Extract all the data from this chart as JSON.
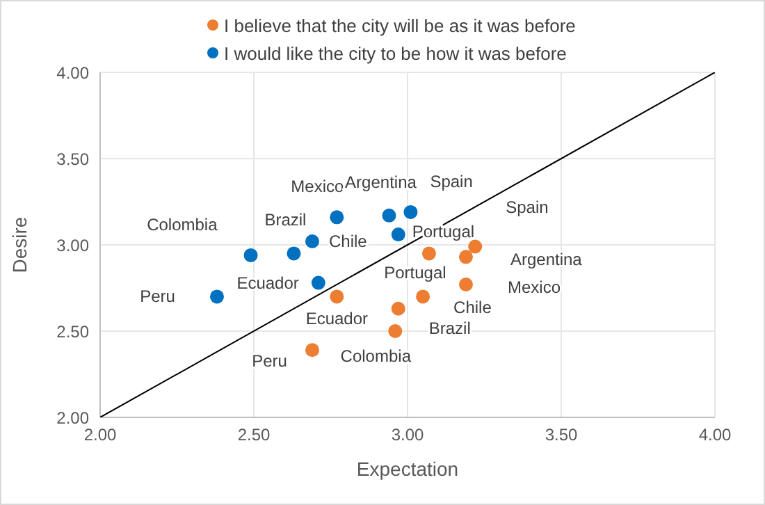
{
  "chart_data": {
    "type": "scatter",
    "xlabel": "Expectation",
    "ylabel": "Desire",
    "xlim": [
      2,
      4
    ],
    "ylim": [
      2,
      4
    ],
    "xticks": [
      {
        "value": 2,
        "label": "2.00"
      },
      {
        "value": 2.5,
        "label": "2.50"
      },
      {
        "value": 3,
        "label": "3.00"
      },
      {
        "value": 3.5,
        "label": "3.50"
      },
      {
        "value": 4,
        "label": "4.00"
      }
    ],
    "yticks": [
      {
        "value": 2,
        "label": "2.00"
      },
      {
        "value": 2.5,
        "label": "2.50"
      },
      {
        "value": 3,
        "label": "3.00"
      },
      {
        "value": 3.5,
        "label": "3.50"
      },
      {
        "value": 4,
        "label": "4.00"
      }
    ],
    "grid": true,
    "legend": "top",
    "marker": "circle",
    "series": [
      {
        "name": "I believe that the city will be as it was before",
        "color": "#ed7d31",
        "x": [
          3.22,
          3.19,
          3.07,
          3.19,
          3.05,
          2.97,
          2.96,
          2.77,
          2.69
        ],
        "values": [
          2.99,
          2.93,
          2.95,
          2.77,
          2.7,
          2.63,
          2.5,
          2.7,
          2.39
        ]
      },
      {
        "name": "I would like the city to be how it was before",
        "color": "#0070c0",
        "x": [
          2.38,
          2.49,
          2.63,
          2.69,
          2.77,
          2.94,
          3.01,
          2.97,
          2.71
        ],
        "values": [
          2.7,
          2.94,
          2.95,
          3.02,
          3.16,
          3.17,
          3.19,
          3.06,
          2.78
        ]
      },
      {
        "type": "line",
        "color": "#000000",
        "marker": "none",
        "x": [
          2,
          4
        ],
        "values": [
          2,
          4
        ]
      }
    ],
    "annotations": [
      {
        "text": "Spain",
        "x": 3.22,
        "y": 2.99
      },
      {
        "text": "Argentina",
        "x": 3.19,
        "y": 2.93
      },
      {
        "text": "Portugal",
        "x": 3.07,
        "y": 2.95
      },
      {
        "text": "Mexico",
        "x": 3.19,
        "y": 2.77
      },
      {
        "text": "Chile",
        "x": 3.05,
        "y": 2.7
      },
      {
        "text": "Brazil",
        "x": 2.97,
        "y": 2.63
      },
      {
        "text": "Colombia",
        "x": 2.96,
        "y": 2.5
      },
      {
        "text": "Ecuador",
        "x": 2.77,
        "y": 2.7
      },
      {
        "text": "Peru",
        "x": 2.69,
        "y": 2.39
      },
      {
        "text": "Peru",
        "x": 2.38,
        "y": 2.7
      },
      {
        "text": "Colombia",
        "x": 2.49,
        "y": 2.94
      },
      {
        "text": "Brazil",
        "x": 2.63,
        "y": 2.95
      },
      {
        "text": "Chile",
        "x": 2.69,
        "y": 3.02
      },
      {
        "text": "Mexico",
        "x": 2.77,
        "y": 3.16
      },
      {
        "text": "Argentina",
        "x": 2.94,
        "y": 3.17
      },
      {
        "text": "Spain",
        "x": 3.01,
        "y": 3.19
      },
      {
        "text": "Portugal",
        "x": 2.97,
        "y": 3.06
      },
      {
        "text": "Ecuador",
        "x": 2.71,
        "y": 2.78
      }
    ]
  }
}
